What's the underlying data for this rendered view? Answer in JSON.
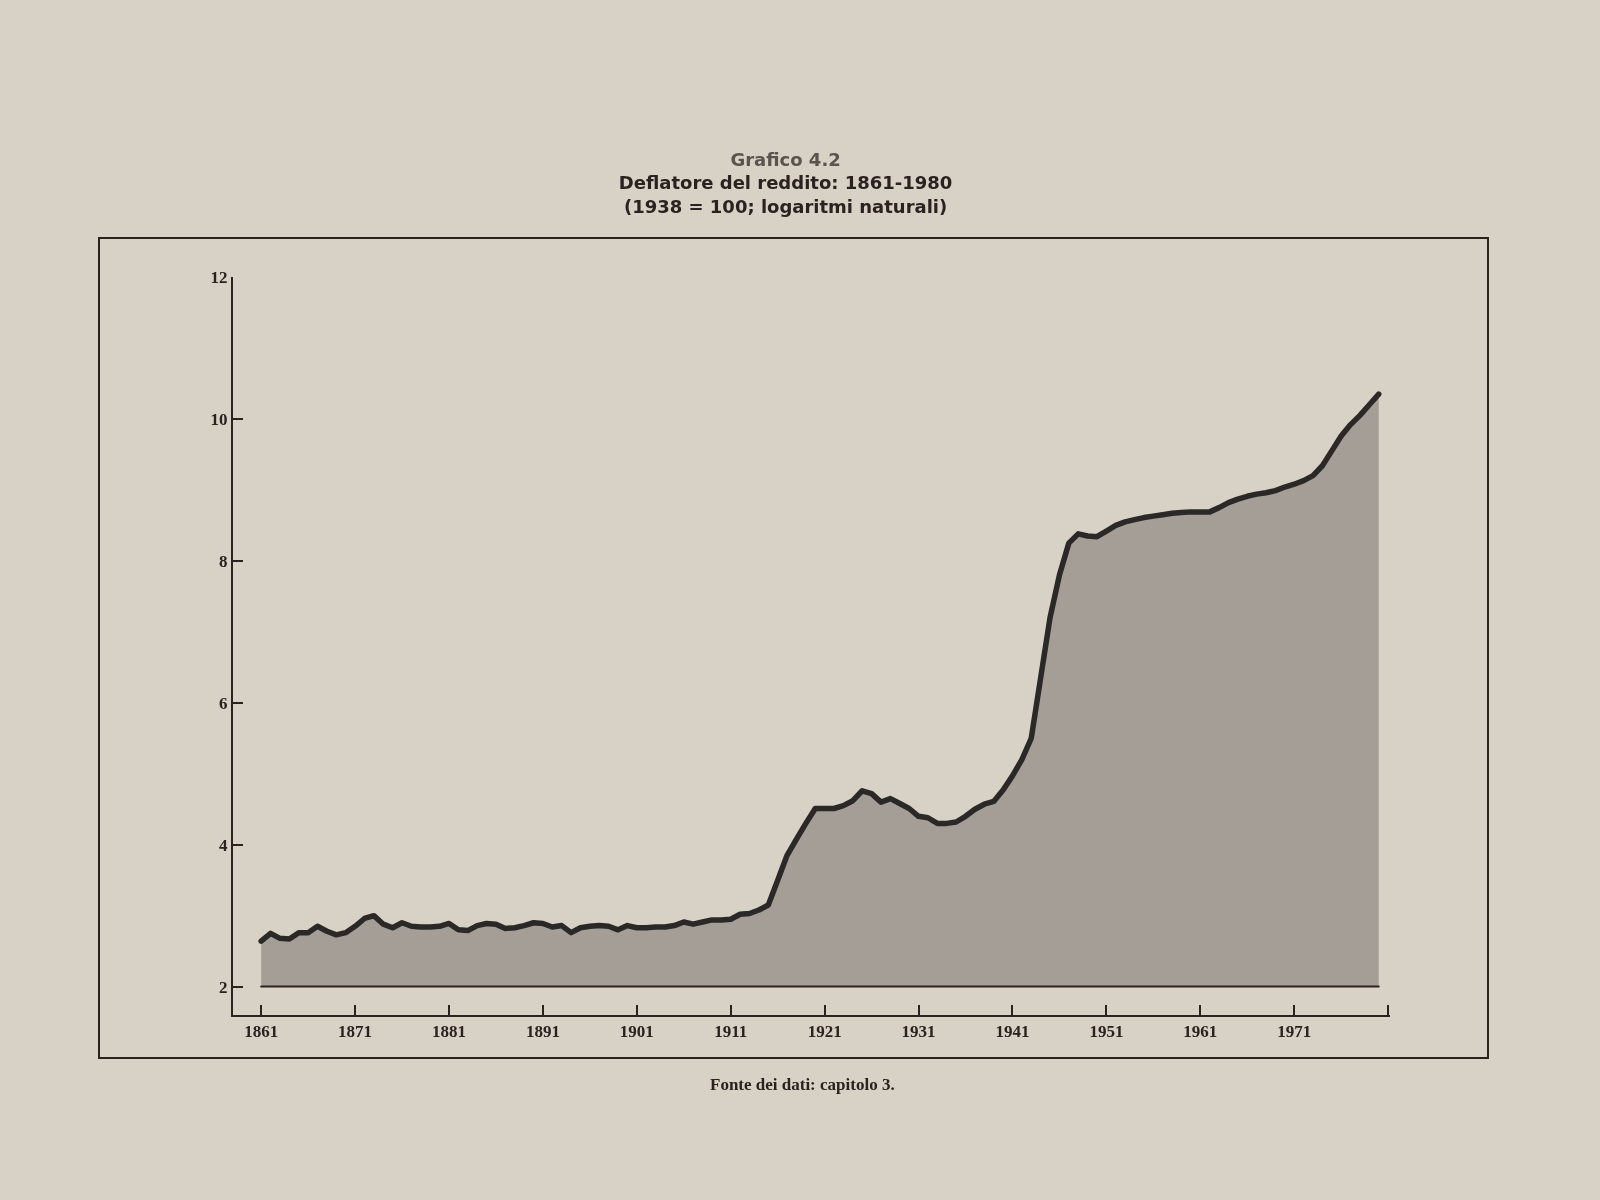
{
  "chart_data": {
    "type": "area",
    "title": "Grafico 4.2",
    "subtitle": "Deflatore del reddito: 1861-1980\n(1938 = 100; logaritmi naturali)",
    "annotations": [
      "Fonte dei dati: capitolo 3."
    ],
    "x": [
      1861,
      1862,
      1863,
      1864,
      1865,
      1866,
      1867,
      1868,
      1869,
      1870,
      1871,
      1872,
      1873,
      1874,
      1875,
      1876,
      1877,
      1878,
      1879,
      1880,
      1881,
      1882,
      1883,
      1884,
      1885,
      1886,
      1887,
      1888,
      1889,
      1890,
      1891,
      1892,
      1893,
      1894,
      1895,
      1896,
      1897,
      1898,
      1899,
      1900,
      1901,
      1902,
      1903,
      1904,
      1905,
      1906,
      1907,
      1908,
      1909,
      1910,
      1911,
      1912,
      1913,
      1914,
      1915,
      1916,
      1917,
      1918,
      1919,
      1920,
      1921,
      1922,
      1923,
      1924,
      1925,
      1926,
      1927,
      1928,
      1929,
      1930,
      1931,
      1932,
      1933,
      1934,
      1935,
      1936,
      1937,
      1938,
      1939,
      1940,
      1941,
      1942,
      1943,
      1944,
      1945,
      1946,
      1947,
      1948,
      1949,
      1950,
      1951,
      1952,
      1953,
      1954,
      1955,
      1956,
      1957,
      1958,
      1959,
      1960,
      1961,
      1962,
      1963,
      1964,
      1965,
      1966,
      1967,
      1968,
      1969,
      1970,
      1971,
      1972,
      1973,
      1974,
      1975,
      1976,
      1977,
      1978,
      1979,
      1980
    ],
    "series": [
      {
        "color": "#a49e96",
        "values": [
          2.64,
          2.75,
          2.68,
          2.67,
          2.76,
          2.76,
          2.85,
          2.78,
          2.73,
          2.76,
          2.85,
          2.96,
          3.0,
          2.88,
          2.83,
          2.9,
          2.85,
          2.84,
          2.84,
          2.85,
          2.89,
          2.8,
          2.79,
          2.86,
          2.89,
          2.88,
          2.82,
          2.83,
          2.86,
          2.9,
          2.89,
          2.84,
          2.86,
          2.76,
          2.83,
          2.85,
          2.86,
          2.85,
          2.8,
          2.86,
          2.83,
          2.83,
          2.84,
          2.84,
          2.86,
          2.91,
          2.88,
          2.91,
          2.94,
          2.94,
          2.95,
          3.02,
          3.03,
          3.08,
          3.15,
          3.5,
          3.85,
          4.08,
          4.3,
          4.51,
          4.51,
          4.51,
          4.55,
          4.62,
          4.76,
          4.72,
          4.6,
          4.65,
          4.58,
          4.51,
          4.4,
          4.38,
          4.3,
          4.3,
          4.32,
          4.4,
          4.5,
          4.57,
          4.61,
          4.77,
          4.97,
          5.2,
          5.5,
          6.35,
          7.2,
          7.8,
          8.25,
          8.38,
          8.35,
          8.34,
          8.42,
          8.5,
          8.55,
          8.58,
          8.61,
          8.63,
          8.65,
          8.67,
          8.68,
          8.69,
          8.69,
          8.69,
          8.75,
          8.82,
          8.87,
          8.91,
          8.94,
          8.96,
          8.99,
          9.04,
          9.08,
          9.13,
          9.2,
          9.34,
          9.55,
          9.76,
          9.92,
          10.05,
          10.2,
          10.35
        ]
      }
    ],
    "ref_lines": [
      {
        "axis": "y",
        "value": 2,
        "color": "#2a2220"
      }
    ],
    "xlim": [
      1858,
      1981.2
    ],
    "xticks": [
      1861,
      1871,
      1881,
      1891,
      1901,
      1911,
      1921,
      1931,
      1941,
      1951,
      1961,
      1971,
      {
        "value": 1981,
        "label": null
      }
    ],
    "ylim": [
      1.6,
      12
    ],
    "yticks": [
      2,
      4,
      6,
      8,
      10,
      12
    ],
    "grid": false,
    "marker": "none"
  }
}
